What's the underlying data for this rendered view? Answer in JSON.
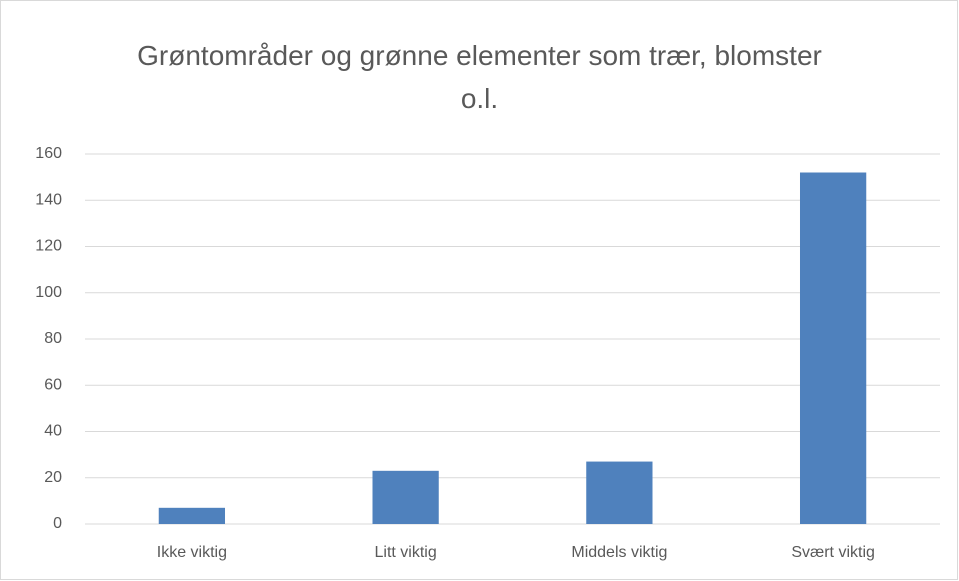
{
  "chart_data": {
    "type": "bar",
    "title": "Grøntområder og grønne elementer som trær, blomster o.l.",
    "categories": [
      "Ikke viktig",
      "Litt viktig",
      "Middels viktig",
      "Svært viktig"
    ],
    "values": [
      7,
      23,
      27,
      152
    ],
    "color": "#4f81bd",
    "ylim": [
      0,
      160
    ],
    "yticks": [
      0,
      20,
      40,
      60,
      80,
      100,
      120,
      140,
      160
    ],
    "grid": true
  }
}
